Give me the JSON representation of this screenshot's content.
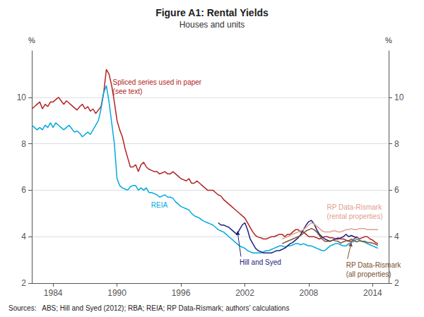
{
  "chart_data": {
    "type": "line",
    "title": "Figure A1: Rental Yields",
    "subtitle": "Houses and units",
    "source": "Sources:   ABS; Hill and Syed (2012); RBA; REIA; RP Data-Rismark; authors’ calculations",
    "y_label": "%",
    "y2_label": "%",
    "xlim": [
      1982.0,
      2015.5
    ],
    "xticks": [
      1984,
      1990,
      1996,
      2002,
      2008,
      2014
    ],
    "ylim": [
      2,
      12
    ],
    "yticks": [
      2,
      4,
      6,
      8,
      10
    ],
    "y2lim": [
      2,
      12
    ],
    "y2ticks": [
      2,
      4,
      6,
      8,
      10
    ],
    "grid": "y",
    "series": [
      {
        "color": "#b22222",
        "x": [
          1982.0,
          1982.25,
          1982.5,
          1982.75,
          1983.0,
          1983.25,
          1983.5,
          1983.75,
          1984.0,
          1984.25,
          1984.5,
          1984.75,
          1985.0,
          1985.25,
          1985.5,
          1985.75,
          1986.0,
          1986.25,
          1986.5,
          1986.75,
          1987.0,
          1987.25,
          1987.5,
          1987.75,
          1988.0,
          1988.25,
          1988.5,
          1988.75,
          1989.0,
          1989.25,
          1989.5,
          1989.75,
          1990.0,
          1990.25,
          1990.5,
          1990.75,
          1991.0,
          1991.25,
          1991.5,
          1991.75,
          1992.0,
          1992.25,
          1992.5,
          1992.75,
          1993.0,
          1993.25,
          1993.5,
          1993.75,
          1994.0,
          1994.25,
          1994.5,
          1994.75,
          1995.0,
          1995.25,
          1995.5,
          1995.75,
          1996.0,
          1996.25,
          1996.5,
          1996.75,
          1997.0,
          1997.25,
          1997.5,
          1997.75,
          1998.0,
          1998.25,
          1998.5,
          1998.75,
          1999.0,
          1999.25,
          1999.5,
          1999.75,
          2000.0,
          2000.25,
          2000.5,
          2000.75,
          2001.0,
          2001.25,
          2001.5,
          2001.75,
          2002.0,
          2002.25,
          2002.5,
          2002.75,
          2003.0,
          2003.25,
          2003.5,
          2003.75,
          2004.0,
          2004.25,
          2004.5,
          2004.75,
          2005.0,
          2005.25,
          2005.5,
          2005.75,
          2006.0,
          2006.25,
          2006.5,
          2006.75,
          2007.0,
          2007.25,
          2007.5,
          2007.75,
          2008.0,
          2008.25,
          2008.5,
          2008.75,
          2009.0,
          2009.25,
          2009.5,
          2009.75,
          2010.0,
          2010.25,
          2010.5,
          2010.75,
          2011.0,
          2011.25,
          2011.5,
          2011.75,
          2012.0,
          2012.25,
          2012.5,
          2012.75,
          2013.0,
          2013.25,
          2013.5,
          2013.75,
          2014.0,
          2014.25,
          2014.5
        ],
        "values": [
          9.5,
          9.6,
          9.7,
          9.8,
          9.5,
          9.7,
          9.6,
          9.8,
          9.8,
          9.9,
          10.0,
          9.85,
          9.7,
          9.85,
          9.75,
          9.65,
          9.55,
          9.45,
          9.6,
          9.7,
          9.5,
          9.6,
          9.4,
          9.5,
          9.3,
          9.45,
          9.6,
          10.2,
          11.2,
          11.0,
          10.5,
          9.8,
          9.0,
          8.6,
          8.3,
          7.8,
          7.4,
          7.0,
          7.0,
          7.1,
          6.8,
          7.1,
          7.2,
          7.0,
          6.9,
          6.85,
          6.8,
          6.8,
          6.7,
          6.75,
          6.8,
          6.7,
          6.7,
          6.8,
          6.7,
          6.6,
          6.5,
          6.45,
          6.4,
          6.5,
          6.3,
          6.3,
          6.4,
          6.3,
          6.2,
          6.1,
          6.0,
          6.0,
          6.0,
          5.9,
          5.8,
          5.75,
          5.6,
          5.5,
          5.4,
          5.3,
          5.2,
          5.1,
          5.0,
          4.9,
          4.8,
          4.6,
          4.4,
          4.2,
          4.05,
          3.98,
          3.95,
          3.9,
          3.9,
          3.95,
          4.0,
          4.0,
          4.05,
          4.1,
          4.1,
          4.0,
          4.1,
          4.1,
          4.2,
          4.3,
          4.3,
          4.2,
          4.2,
          4.1,
          4.0,
          4.0,
          4.0,
          3.95,
          3.9,
          3.95,
          4.0,
          4.0,
          3.95,
          3.95,
          3.9,
          3.95,
          3.9,
          3.9,
          3.85,
          3.8,
          3.8,
          3.9,
          4.0,
          3.9,
          3.95,
          4.0,
          4.0,
          3.9,
          3.85,
          3.75,
          3.7
        ]
      },
      {
        "color": "#00aadd",
        "x": [
          1982.0,
          1982.25,
          1982.5,
          1982.75,
          1983.0,
          1983.25,
          1983.5,
          1983.75,
          1984.0,
          1984.25,
          1984.5,
          1984.75,
          1985.0,
          1985.25,
          1985.5,
          1985.75,
          1986.0,
          1986.25,
          1986.5,
          1986.75,
          1987.0,
          1987.25,
          1987.5,
          1987.75,
          1988.0,
          1988.25,
          1988.5,
          1988.75,
          1989.0,
          1989.25,
          1989.5,
          1989.75,
          1990.0,
          1990.25,
          1990.5,
          1990.75,
          1991.0,
          1991.25,
          1991.5,
          1991.75,
          1992.0,
          1992.25,
          1992.5,
          1992.75,
          1993.0,
          1993.25,
          1993.5,
          1993.75,
          1994.0,
          1994.25,
          1994.5,
          1994.75,
          1995.0,
          1995.25,
          1995.5,
          1995.75,
          1996.0,
          1996.25,
          1996.5,
          1996.75,
          1997.0,
          1997.25,
          1997.5,
          1997.75,
          1998.0,
          1998.25,
          1998.5,
          1998.75,
          1999.0,
          1999.25,
          1999.5,
          1999.75,
          2000.0,
          2000.25,
          2000.5,
          2000.75,
          2001.0,
          2001.25,
          2001.5,
          2001.75,
          2002.0,
          2002.25,
          2002.5,
          2002.75,
          2003.0,
          2003.25,
          2003.5,
          2003.75,
          2004.0,
          2004.25,
          2004.5,
          2004.75,
          2005.0,
          2005.25,
          2005.5,
          2005.75,
          2006.0,
          2006.25,
          2006.5,
          2006.75,
          2007.0,
          2007.25,
          2007.5,
          2007.75,
          2008.0,
          2008.25,
          2008.5,
          2008.75,
          2009.0,
          2009.25,
          2009.5,
          2009.75,
          2010.0,
          2010.25,
          2010.5,
          2010.75,
          2011.0,
          2011.25,
          2011.5,
          2011.75,
          2012.0,
          2012.25,
          2012.5,
          2012.75,
          2013.0,
          2013.25,
          2013.5,
          2013.75,
          2014.0,
          2014.25,
          2014.5
        ],
        "values": [
          8.8,
          8.7,
          8.6,
          8.7,
          8.6,
          8.8,
          8.7,
          8.9,
          8.7,
          8.9,
          8.8,
          8.7,
          8.6,
          8.7,
          8.8,
          8.65,
          8.5,
          8.55,
          8.45,
          8.3,
          8.4,
          8.5,
          8.4,
          8.6,
          8.8,
          9.0,
          9.5,
          10.2,
          10.5,
          9.8,
          8.9,
          8.0,
          6.5,
          6.2,
          6.1,
          6.05,
          6.0,
          6.15,
          6.2,
          6.2,
          6.0,
          6.1,
          6.0,
          6.1,
          5.9,
          5.9,
          5.85,
          5.8,
          5.7,
          5.75,
          5.8,
          5.7,
          5.7,
          5.65,
          5.5,
          5.4,
          5.3,
          5.25,
          5.2,
          5.15,
          5.0,
          4.9,
          4.85,
          4.8,
          4.7,
          4.65,
          4.6,
          4.55,
          4.5,
          4.4,
          4.3,
          4.25,
          4.2,
          4.1,
          4.0,
          3.9,
          3.8,
          3.7,
          3.6,
          3.55,
          3.5,
          3.4,
          3.35,
          3.3,
          3.3,
          3.3,
          3.3,
          3.35,
          3.4,
          3.4,
          3.45,
          3.5,
          3.55,
          3.6,
          3.6,
          3.55,
          3.6,
          3.6,
          3.65,
          3.7,
          3.7,
          3.65,
          3.7,
          3.65,
          3.6,
          3.6,
          3.55,
          3.5,
          3.45,
          3.4,
          3.4,
          3.5,
          3.6,
          3.65,
          3.7,
          3.7,
          3.65,
          3.6,
          3.6,
          3.7,
          3.75,
          3.8,
          3.9,
          3.85,
          3.8,
          3.75,
          3.7,
          3.65,
          3.6,
          3.55,
          3.5
        ]
      },
      {
        "color": "#1a237e",
        "x": [
          1999.5,
          1999.75,
          2000.0,
          2000.25,
          2000.5,
          2000.75,
          2001.0,
          2001.25,
          2001.5,
          2001.75,
          2002.0,
          2002.25,
          2002.5,
          2002.75,
          2003.0,
          2003.25,
          2003.5,
          2003.75,
          2004.0,
          2004.25,
          2004.5,
          2004.75,
          2005.0,
          2005.25,
          2005.5,
          2005.75,
          2006.0,
          2006.25,
          2006.5,
          2006.75,
          2007.0,
          2007.25,
          2007.5,
          2007.75,
          2008.0,
          2008.25,
          2008.5,
          2008.75,
          2009.0,
          2009.25,
          2009.5,
          2009.75,
          2010.0,
          2010.25,
          2010.5,
          2010.75,
          2011.0,
          2011.25,
          2011.5,
          2011.75,
          2012.0,
          2012.25,
          2012.5
        ],
        "values": [
          4.6,
          4.5,
          4.5,
          4.45,
          4.4,
          4.3,
          4.2,
          4.1,
          4.3,
          4.5,
          4.6,
          4.3,
          3.9,
          3.7,
          3.5,
          3.4,
          3.35,
          3.3,
          3.3,
          3.3,
          3.3,
          3.35,
          3.4,
          3.4,
          3.45,
          3.5,
          3.6,
          3.7,
          3.75,
          3.85,
          3.95,
          4.1,
          4.3,
          4.5,
          4.65,
          4.7,
          4.55,
          4.3,
          4.1,
          4.0,
          3.9,
          3.85,
          3.8,
          3.85,
          3.9,
          3.9,
          3.95,
          4.0,
          4.1,
          4.0,
          4.05,
          4.0,
          3.95
        ]
      },
      {
        "color": "#dda090",
        "x": [
          2005.5,
          2005.75,
          2006.0,
          2006.25,
          2006.5,
          2006.75,
          2007.0,
          2007.25,
          2007.5,
          2007.75,
          2008.0,
          2008.25,
          2008.5,
          2008.75,
          2009.0,
          2009.25,
          2009.5,
          2009.75,
          2010.0,
          2010.25,
          2010.5,
          2010.75,
          2011.0,
          2011.25,
          2011.5,
          2011.75,
          2012.0,
          2012.25,
          2012.5,
          2012.75,
          2013.0,
          2013.25,
          2013.5,
          2013.75,
          2014.0,
          2014.25,
          2014.5
        ],
        "values": [
          3.9,
          3.95,
          4.0,
          4.05,
          4.1,
          4.15,
          4.2,
          4.25,
          4.3,
          4.4,
          4.5,
          4.6,
          4.55,
          4.45,
          4.35,
          4.25,
          4.2,
          4.2,
          4.2,
          4.25,
          4.25,
          4.2,
          4.2,
          4.25,
          4.3,
          4.3,
          4.35,
          4.3,
          4.3,
          4.35,
          4.35,
          4.35,
          4.3,
          4.3,
          4.3,
          4.3,
          4.3
        ]
      },
      {
        "color": "#7b4f2e",
        "x": [
          2005.5,
          2005.75,
          2006.0,
          2006.25,
          2006.5,
          2006.75,
          2007.0,
          2007.25,
          2007.5,
          2007.75,
          2008.0,
          2008.25,
          2008.5,
          2008.75,
          2009.0,
          2009.25,
          2009.5,
          2009.75,
          2010.0,
          2010.25,
          2010.5,
          2010.75,
          2011.0,
          2011.25,
          2011.5,
          2011.75,
          2012.0,
          2012.25,
          2012.5,
          2012.75,
          2013.0,
          2013.25,
          2013.5,
          2013.75,
          2014.0,
          2014.25,
          2014.5
        ],
        "values": [
          3.7,
          3.75,
          3.8,
          3.85,
          3.9,
          3.95,
          4.0,
          4.05,
          4.15,
          4.25,
          4.3,
          4.35,
          4.3,
          4.2,
          4.05,
          3.9,
          3.8,
          3.8,
          3.8,
          3.85,
          3.82,
          3.8,
          3.72,
          3.78,
          3.82,
          3.82,
          3.9,
          3.82,
          3.78,
          3.82,
          3.8,
          3.8,
          3.75,
          3.75,
          3.72,
          3.68,
          3.62
        ]
      }
    ],
    "annotations": [
      {
        "text": "Spliced series used in paper\n(see text)",
        "x": 1989.6,
        "y": 10.85,
        "color": "#b22222"
      },
      {
        "text": "REIA",
        "x": 1993.2,
        "y": 5.55,
        "color": "#00aadd"
      },
      {
        "text": "Hill and Syed",
        "x": 2001.5,
        "y": 3.08,
        "color": "#1a237e",
        "arrow_to": [
          2001.3,
          4.25
        ]
      },
      {
        "text": "RP Data-Rismark\n(rental properties)",
        "x": 2009.7,
        "y": 5.45,
        "color": "#dda090"
      },
      {
        "text": "RP Data-Rismark\n(all properties)",
        "x": 2011.5,
        "y": 2.98,
        "color": "#7b4f2e",
        "arrow_to": [
          2012.0,
          3.76
        ]
      }
    ]
  }
}
